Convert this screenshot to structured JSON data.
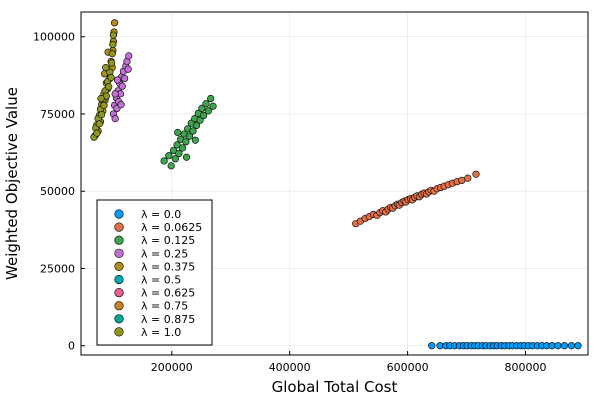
{
  "chart_data": {
    "type": "scatter",
    "xlabel": "Global Total Cost",
    "ylabel": "Weighted Objective Value",
    "xlim": [
      46000,
      906000
    ],
    "ylim": [
      -3000,
      108000
    ],
    "xticks": [
      200000,
      400000,
      600000,
      800000
    ],
    "xtick_labels": [
      "200000",
      "400000",
      "600000",
      "800000"
    ],
    "yticks": [
      0,
      25000,
      50000,
      75000,
      100000
    ],
    "ytick_labels": [
      "0",
      "25000",
      "50000",
      "75000",
      "100000"
    ],
    "grid": true,
    "legend_position": "bottom-left",
    "series": [
      {
        "name": "λ = 0.0",
        "color": "#009AFA",
        "points": [
          [
            641000,
            0
          ],
          [
            655000,
            0
          ],
          [
            665000,
            0
          ],
          [
            672000,
            0
          ],
          [
            680000,
            0
          ],
          [
            688000,
            0
          ],
          [
            695000,
            0
          ],
          [
            701000,
            0
          ],
          [
            708000,
            0
          ],
          [
            714000,
            0
          ],
          [
            720000,
            0
          ],
          [
            727000,
            0
          ],
          [
            733000,
            0
          ],
          [
            740000,
            0
          ],
          [
            746000,
            0
          ],
          [
            752000,
            0
          ],
          [
            759000,
            0
          ],
          [
            765000,
            0
          ],
          [
            772000,
            0
          ],
          [
            778000,
            0
          ],
          [
            785000,
            0
          ],
          [
            792000,
            0
          ],
          [
            798000,
            0
          ],
          [
            805000,
            0
          ],
          [
            812000,
            0
          ],
          [
            820000,
            0
          ],
          [
            828000,
            0
          ],
          [
            836000,
            0
          ],
          [
            845000,
            0
          ],
          [
            855000,
            0
          ],
          [
            866000,
            0
          ],
          [
            878000,
            0
          ],
          [
            889000,
            0
          ]
        ]
      },
      {
        "name": "λ = 0.0625",
        "color": "#E36F47",
        "points": [
          [
            512000,
            39500
          ],
          [
            520000,
            40300
          ],
          [
            528000,
            41200
          ],
          [
            535000,
            41800
          ],
          [
            542000,
            42500
          ],
          [
            548000,
            42200
          ],
          [
            553000,
            43100
          ],
          [
            558000,
            43700
          ],
          [
            563000,
            43300
          ],
          [
            567000,
            44200
          ],
          [
            571000,
            44800
          ],
          [
            575000,
            44500
          ],
          [
            579000,
            45300
          ],
          [
            583000,
            45800
          ],
          [
            586000,
            45500
          ],
          [
            590000,
            46300
          ],
          [
            594000,
            46800
          ],
          [
            597000,
            46500
          ],
          [
            601000,
            47300
          ],
          [
            605000,
            47600
          ],
          [
            608000,
            47200
          ],
          [
            612000,
            48000
          ],
          [
            616000,
            48500
          ],
          [
            620000,
            48200
          ],
          [
            624000,
            49000
          ],
          [
            628000,
            49400
          ],
          [
            632000,
            49100
          ],
          [
            636000,
            49800
          ],
          [
            640000,
            50300
          ],
          [
            645000,
            50000
          ],
          [
            650000,
            50800
          ],
          [
            656000,
            51200
          ],
          [
            662000,
            51600
          ],
          [
            669000,
            52100
          ],
          [
            676000,
            52600
          ],
          [
            684000,
            53100
          ],
          [
            692000,
            53500
          ],
          [
            702000,
            54200
          ],
          [
            716000,
            55500
          ]
        ]
      },
      {
        "name": "λ = 0.125",
        "color": "#3EA44E",
        "points": [
          [
            187000,
            59800
          ],
          [
            195000,
            61500
          ],
          [
            199000,
            58200
          ],
          [
            203000,
            63200
          ],
          [
            206000,
            60500
          ],
          [
            209000,
            65000
          ],
          [
            212000,
            62200
          ],
          [
            215000,
            66800
          ],
          [
            218000,
            64000
          ],
          [
            221000,
            68500
          ],
          [
            224000,
            66000
          ],
          [
            227000,
            70200
          ],
          [
            230000,
            67800
          ],
          [
            233000,
            72000
          ],
          [
            236000,
            69500
          ],
          [
            239000,
            73500
          ],
          [
            242000,
            71300
          ],
          [
            245000,
            75200
          ],
          [
            248000,
            73000
          ],
          [
            251000,
            76800
          ],
          [
            254000,
            74500
          ],
          [
            258000,
            78300
          ],
          [
            262000,
            76000
          ],
          [
            266000,
            80000
          ],
          [
            270000,
            77500
          ],
          [
            210000,
            69000
          ],
          [
            225000,
            61000
          ],
          [
            240000,
            66500
          ]
        ]
      },
      {
        "name": "λ = 0.25",
        "color": "#C271D2",
        "points": [
          [
            101000,
            75000
          ],
          [
            103000,
            77800
          ],
          [
            104000,
            73500
          ],
          [
            106000,
            80200
          ],
          [
            107000,
            76800
          ],
          [
            109000,
            82500
          ],
          [
            110000,
            79000
          ],
          [
            112000,
            84800
          ],
          [
            113000,
            81500
          ],
          [
            115000,
            87000
          ],
          [
            116000,
            84000
          ],
          [
            118000,
            88800
          ],
          [
            120000,
            86500
          ],
          [
            122000,
            90500
          ],
          [
            124000,
            92000
          ],
          [
            126000,
            89500
          ],
          [
            127000,
            93800
          ],
          [
            104000,
            81500
          ],
          [
            108000,
            86000
          ],
          [
            114000,
            78000
          ]
        ]
      },
      {
        "name": "λ = 0.375",
        "color": "#AC8E18",
        "points": [
          [
            70000,
            68000
          ],
          [
            73000,
            71500
          ],
          [
            75000,
            69500
          ],
          [
            77000,
            74500
          ],
          [
            79000,
            72500
          ],
          [
            81000,
            78000
          ],
          [
            83000,
            76000
          ],
          [
            85000,
            81500
          ],
          [
            87000,
            79500
          ],
          [
            89000,
            85000
          ],
          [
            91000,
            83000
          ],
          [
            93000,
            88500
          ],
          [
            95000,
            86500
          ],
          [
            97000,
            92000
          ],
          [
            99000,
            90000
          ],
          [
            100000,
            95500
          ],
          [
            101000,
            98500
          ],
          [
            102000,
            101500
          ],
          [
            103000,
            104500
          ],
          [
            86000,
            88000
          ],
          [
            92000,
            95000
          ]
        ]
      },
      {
        "name": "λ = 0.5",
        "color": "#00A9AD",
        "points": []
      },
      {
        "name": "λ = 0.625",
        "color": "#ED5E93",
        "points": []
      },
      {
        "name": "λ = 0.75",
        "color": "#C68225",
        "points": []
      },
      {
        "name": "λ = 0.875",
        "color": "#00A98D",
        "points": []
      },
      {
        "name": "λ = 1.0",
        "color": "#8E971E",
        "points": [
          [
            68000,
            67500
          ],
          [
            71000,
            70500
          ],
          [
            73000,
            68800
          ],
          [
            75000,
            73500
          ],
          [
            77000,
            71800
          ],
          [
            79000,
            76500
          ],
          [
            81000,
            74800
          ],
          [
            83000,
            79500
          ],
          [
            85000,
            77800
          ],
          [
            87000,
            82500
          ],
          [
            89000,
            80800
          ],
          [
            91000,
            85500
          ],
          [
            93000,
            83800
          ],
          [
            95000,
            88500
          ],
          [
            97000,
            86800
          ],
          [
            98000,
            91500
          ],
          [
            99000,
            94500
          ],
          [
            100000,
            97500
          ],
          [
            101000,
            100500
          ],
          [
            80000,
            80000
          ],
          [
            88000,
            90000
          ]
        ]
      }
    ]
  }
}
